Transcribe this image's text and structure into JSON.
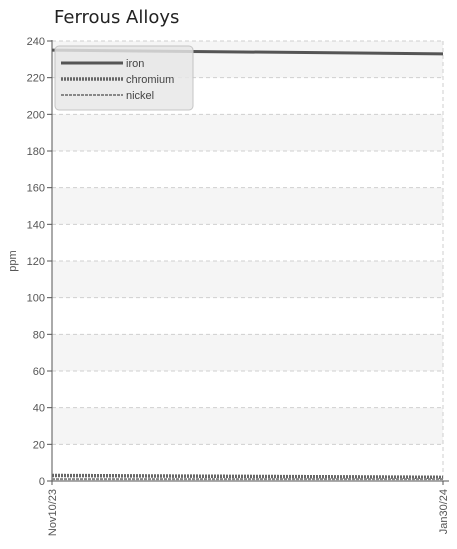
{
  "chart_data": {
    "type": "line",
    "title": "Ferrous Alloys",
    "ylabel": "ppm",
    "xlabel": "",
    "ylim": [
      0,
      240
    ],
    "yticks": [
      0,
      20,
      40,
      60,
      80,
      100,
      120,
      140,
      160,
      180,
      200,
      220,
      240
    ],
    "x": [
      "Nov10/23",
      "Jan30/24"
    ],
    "grid": true,
    "legend_position": "top-left",
    "series": [
      {
        "name": "iron",
        "values": [
          235,
          233
        ],
        "style": "solid",
        "color": "#555555"
      },
      {
        "name": "chromium",
        "values": [
          3,
          2
        ],
        "style": "dotted",
        "color": "#666666"
      },
      {
        "name": "nickel",
        "values": [
          1,
          1
        ],
        "style": "dashed",
        "color": "#888888"
      }
    ]
  }
}
